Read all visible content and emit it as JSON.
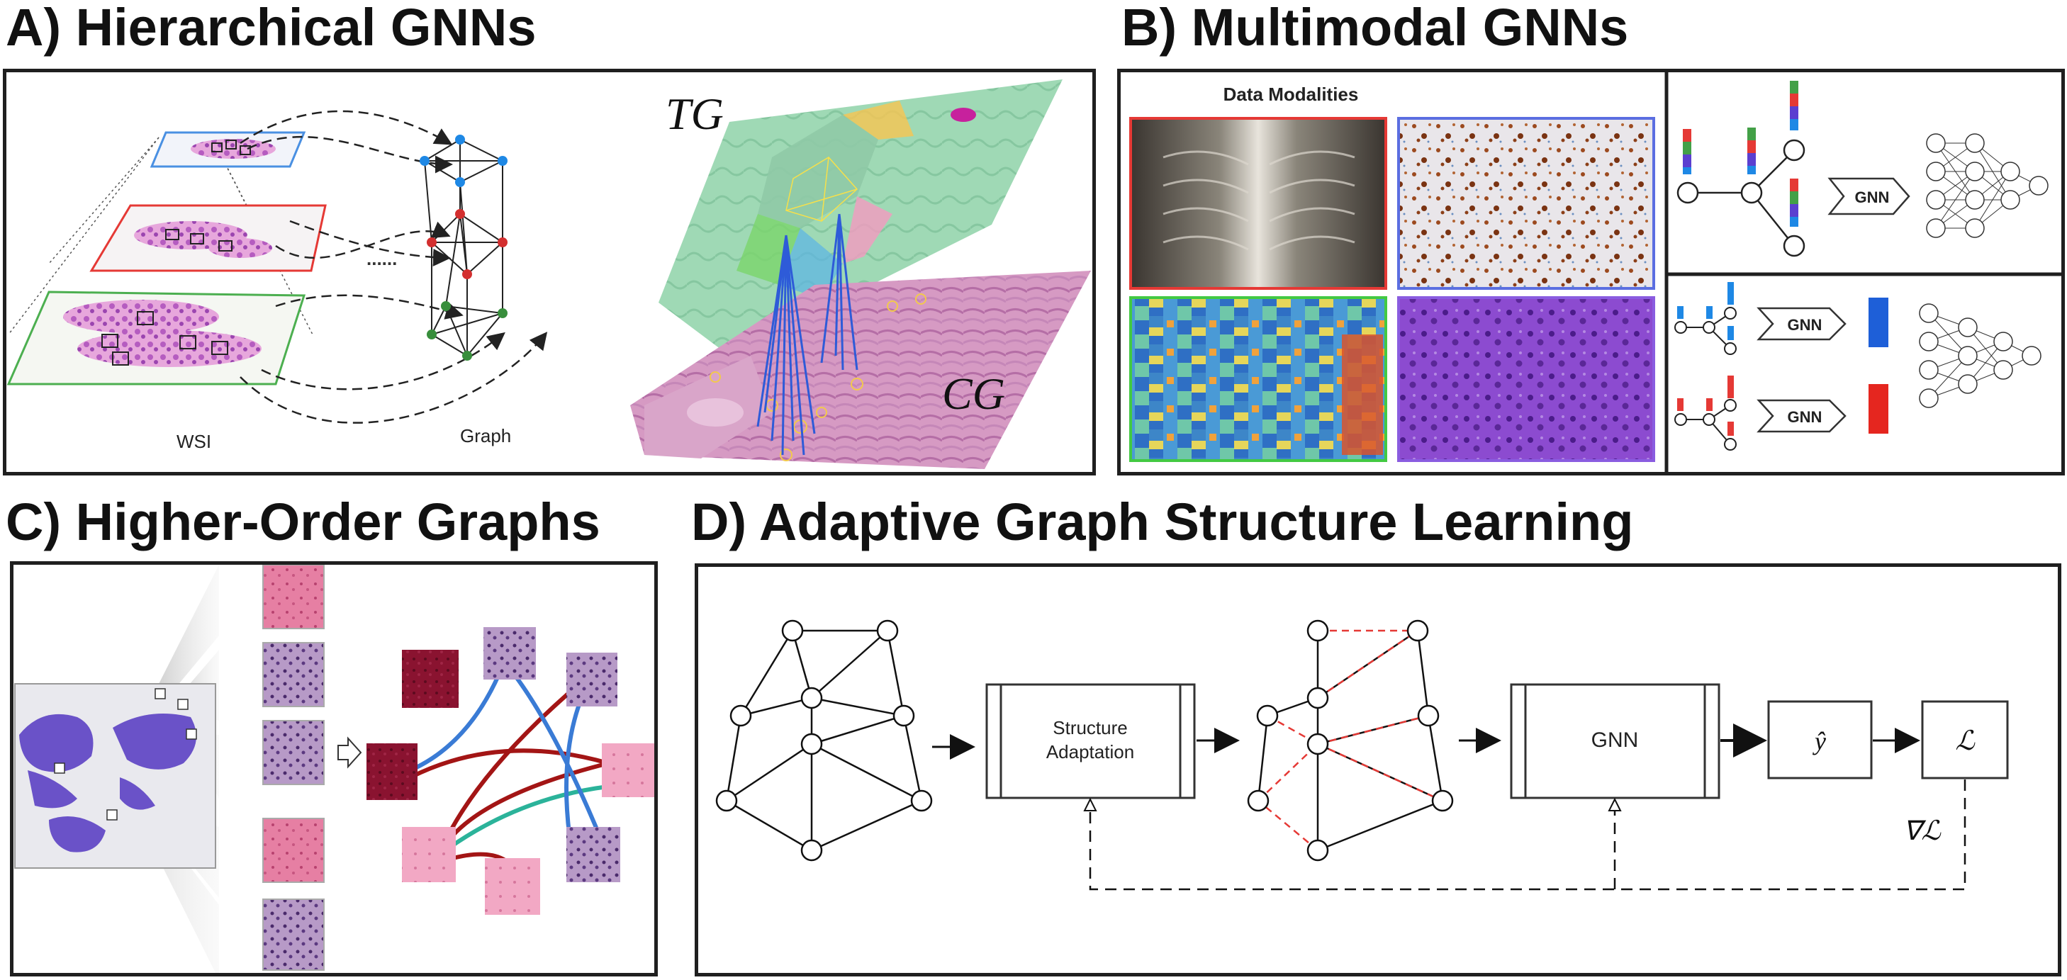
{
  "panels": {
    "a": {
      "title": "A) Hierarchical GNNs",
      "wsi_label": "WSI",
      "graph_label": "Graph",
      "ellipsis": "......",
      "tg_label": "TG",
      "cg_label": "CG"
    },
    "b": {
      "title": "B) Multimodal GNNs",
      "modalities_title": "Data Modalities",
      "gnn_label": "GNN",
      "gnn_label_2": "GNN",
      "gnn_label_3": "GNN"
    },
    "c": {
      "title": "C) Higher-Order Graphs"
    },
    "d": {
      "title": "D) Adaptive Graph Structure Learning",
      "structure_line1": "Structure",
      "structure_line2": "Adaptation",
      "gnn_label": "GNN",
      "yhat": "ŷ",
      "loss": "ℒ",
      "grad_loss": "∇ℒ"
    }
  },
  "colors": {
    "frame": "#1f1f1f",
    "level_blue": "#4a90e2",
    "level_red": "#e53935",
    "level_green": "#4caf50",
    "node_blue": "#1e88e5",
    "node_red": "#d32f2f",
    "node_green": "#388e3c",
    "tissue_purple": "#8e3ea8",
    "modality_red_border": "#e53935",
    "modality_blue_border": "#5b6ee1",
    "modality_green_border": "#43c943",
    "modality_purple_border": "#8a5ce0",
    "hyperedge_red": "#a31515",
    "hyperedge_blue": "#3a7bd5",
    "hyperedge_teal": "#2bb39a",
    "dashed_edge_red": "#e53935"
  },
  "icons": [
    "arrow-right-icon",
    "feature-bar-icon",
    "neural-network-icon",
    "zoom-arrow-icon"
  ]
}
